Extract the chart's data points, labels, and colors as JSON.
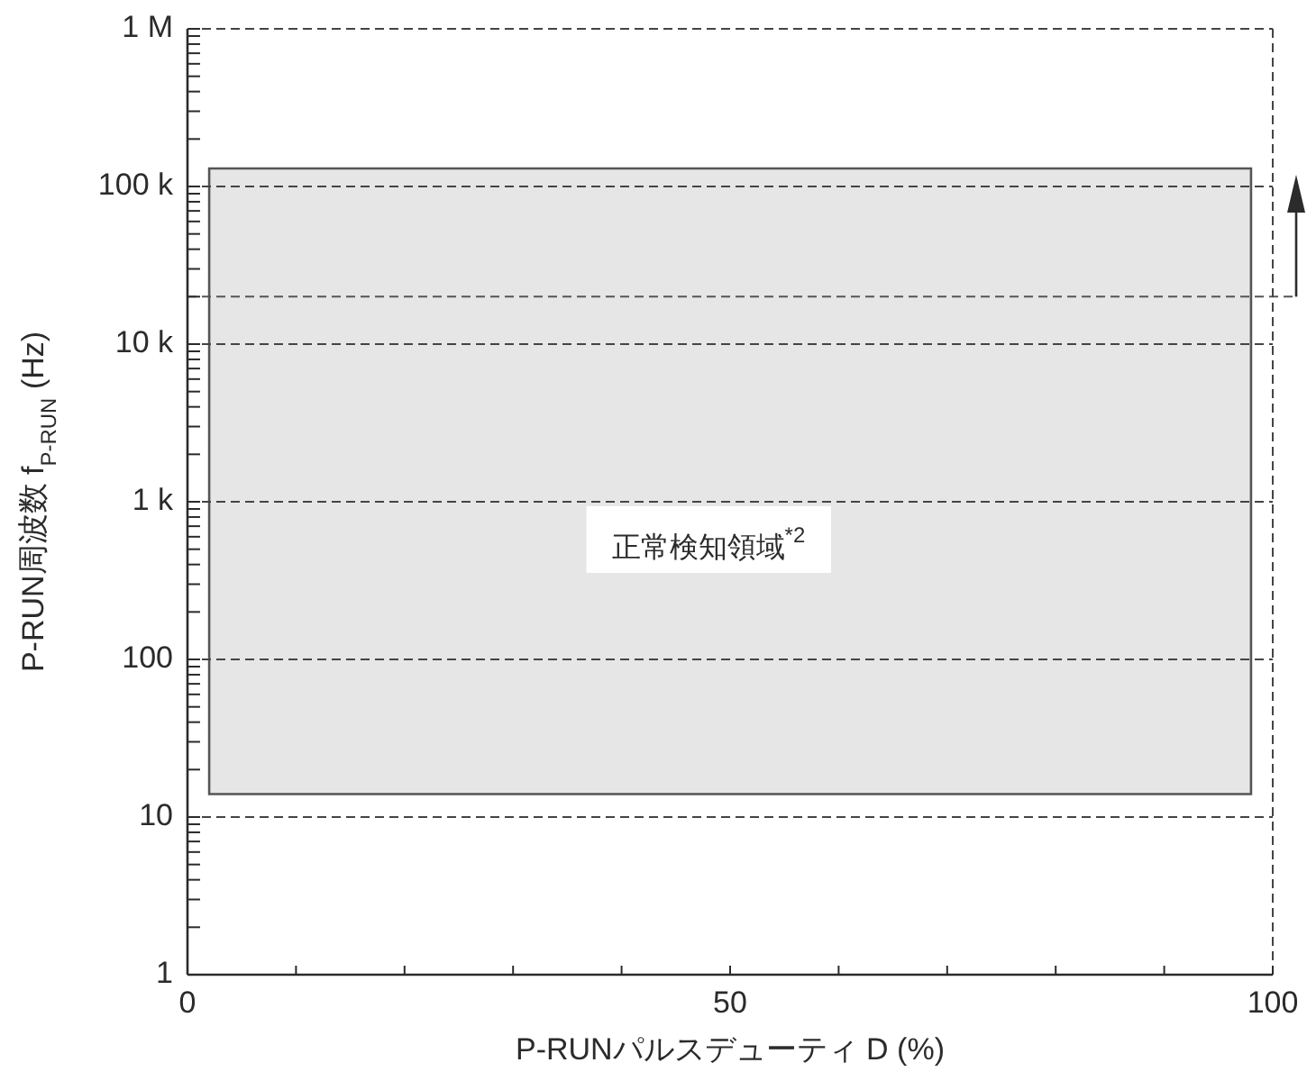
{
  "chart_data": {
    "type": "area",
    "xlabel": "P-RUNパルスデューティ D (%)",
    "ylabel": "P-RUN周波数 f$_{P-RUN}$ (Hz)",
    "annotations": [
      "正常検知領域$^{*2}$"
    ],
    "series": [
      {
        "x": [
          2,
          98
        ],
        "values": [
          null,
          null
        ],
        "lower": [
          14,
          14
        ],
        "upper": [
          130000,
          130000
        ],
        "color": "#555555"
      }
    ],
    "ref_lines": [
      {
        "axis": "y",
        "value": 20000,
        "line_style": "dashed"
      }
    ],
    "xlim": [
      0,
      100
    ],
    "xticks": [
      0,
      {
        "value": 10,
        "label": null
      },
      {
        "value": 20,
        "label": null
      },
      {
        "value": 30,
        "label": null
      },
      {
        "value": 40,
        "label": null
      },
      50,
      {
        "value": 60,
        "label": null
      },
      {
        "value": 70,
        "label": null
      },
      {
        "value": 80,
        "label": null
      },
      {
        "value": 90,
        "label": null
      },
      100
    ],
    "ylim": [
      1,
      1000000
    ],
    "yticks": [
      1,
      {
        "value": 2,
        "label": null
      },
      {
        "value": 3,
        "label": null
      },
      {
        "value": 4,
        "label": null
      },
      {
        "value": 5,
        "label": null
      },
      {
        "value": 6,
        "label": null
      },
      {
        "value": 7,
        "label": null
      },
      {
        "value": 8,
        "label": null
      },
      {
        "value": 9,
        "label": null
      },
      10,
      {
        "value": 20,
        "label": null
      },
      {
        "value": 30,
        "label": null
      },
      {
        "value": 40,
        "label": null
      },
      {
        "value": 50,
        "label": null
      },
      {
        "value": 60,
        "label": null
      },
      {
        "value": 70,
        "label": null
      },
      {
        "value": 80,
        "label": null
      },
      {
        "value": 90,
        "label": null
      },
      100,
      {
        "value": 200,
        "label": null
      },
      {
        "value": 300,
        "label": null
      },
      {
        "value": 400,
        "label": null
      },
      {
        "value": 500,
        "label": null
      },
      {
        "value": 600,
        "label": null
      },
      {
        "value": 700,
        "label": null
      },
      {
        "value": 800,
        "label": null
      },
      {
        "value": 900,
        "label": null
      },
      {
        "value": 1000,
        "label": "1 k"
      },
      {
        "value": 2000,
        "label": null
      },
      {
        "value": 3000,
        "label": null
      },
      {
        "value": 4000,
        "label": null
      },
      {
        "value": 5000,
        "label": null
      },
      {
        "value": 6000,
        "label": null
      },
      {
        "value": 7000,
        "label": null
      },
      {
        "value": 8000,
        "label": null
      },
      {
        "value": 9000,
        "label": null
      },
      {
        "value": 10000,
        "label": "10 k"
      },
      {
        "value": 20000,
        "label": null
      },
      {
        "value": 30000,
        "label": null
      },
      {
        "value": 40000,
        "label": null
      },
      {
        "value": 50000,
        "label": null
      },
      {
        "value": 60000,
        "label": null
      },
      {
        "value": 70000,
        "label": null
      },
      {
        "value": 80000,
        "label": null
      },
      {
        "value": 90000,
        "label": null
      },
      {
        "value": 100000,
        "label": "100 k"
      },
      {
        "value": 200000,
        "label": null
      },
      {
        "value": 300000,
        "label": null
      },
      {
        "value": 400000,
        "label": null
      },
      {
        "value": 500000,
        "label": null
      },
      {
        "value": 600000,
        "label": null
      },
      {
        "value": 700000,
        "label": null
      },
      {
        "value": 800000,
        "label": null
      },
      {
        "value": 900000,
        "label": null
      },
      {
        "value": 1000000,
        "label": "1 M"
      }
    ],
    "log": "y",
    "grid": "y"
  }
}
